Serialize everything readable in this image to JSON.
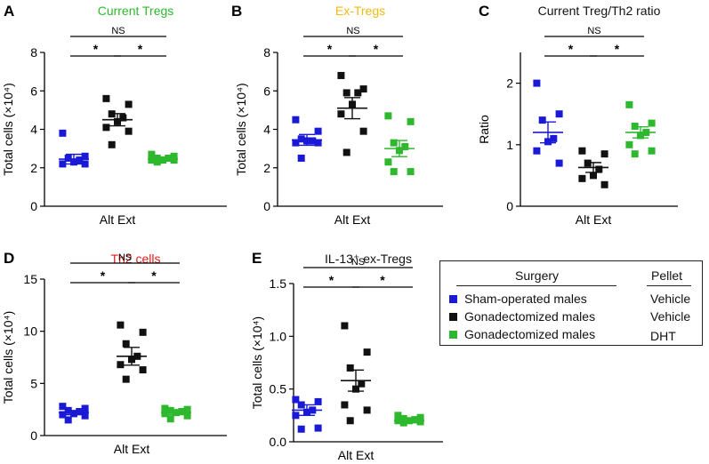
{
  "chart_data": [
    {
      "id": "A",
      "type": "scatter",
      "panel_letter": "A",
      "title": "Current Tregs",
      "title_color": "#2eb82e",
      "xlabel": "Alt Ext",
      "ylabel": "Total cells (×10⁴)",
      "ylim": [
        0,
        8
      ],
      "yticks": [
        "0",
        "2",
        "4",
        "6",
        "8"
      ],
      "groups": [
        {
          "name": "Sham-operated males",
          "color": "#1a1ad6",
          "shape": "square",
          "mean": 2.45,
          "sem": 0.25,
          "values": [
            3.8,
            2.6,
            2.5,
            2.4,
            2.3,
            2.2,
            2.2
          ]
        },
        {
          "name": "Gonadectomized males + Vehicle",
          "color": "#111111",
          "shape": "square",
          "mean": 4.5,
          "sem": 0.32,
          "values": [
            5.6,
            5.3,
            4.8,
            4.6,
            4.4,
            4.1,
            3.9,
            3.2
          ]
        },
        {
          "name": "Gonadectomized males + DHT",
          "color": "#2eb82e",
          "shape": "square",
          "mean": 2.45,
          "sem": 0.1,
          "values": [
            2.7,
            2.6,
            2.5,
            2.5,
            2.4,
            2.4,
            2.4,
            2.3
          ]
        }
      ],
      "significance": [
        {
          "from": 0,
          "to": 1,
          "label": "*"
        },
        {
          "from": 1,
          "to": 2,
          "label": "*"
        },
        {
          "from": 0,
          "to": 2,
          "label": "NS"
        }
      ]
    },
    {
      "id": "B",
      "type": "scatter",
      "panel_letter": "B",
      "title": "Ex-Tregs",
      "title_color": "#f2b90f",
      "xlabel": "Alt Ext",
      "ylabel": "Total cells (×10⁴)",
      "ylim": [
        0,
        8
      ],
      "yticks": [
        "0",
        "2",
        "4",
        "6",
        "8"
      ],
      "groups": [
        {
          "name": "Sham-operated males",
          "color": "#1a1ad6",
          "shape": "square",
          "mean": 3.45,
          "sem": 0.28,
          "values": [
            4.5,
            3.9,
            3.5,
            3.4,
            3.4,
            3.3,
            3.3,
            2.5
          ]
        },
        {
          "name": "Gonadectomized males + Vehicle",
          "color": "#111111",
          "shape": "square",
          "mean": 5.1,
          "sem": 0.55,
          "values": [
            6.8,
            6.1,
            5.9,
            5.9,
            5.3,
            4.8,
            3.9,
            2.8
          ]
        },
        {
          "name": "Gonadectomized males + DHT",
          "color": "#2eb82e",
          "shape": "square",
          "mean": 3.0,
          "sem": 0.42,
          "values": [
            4.7,
            4.4,
            3.3,
            3.1,
            2.9,
            2.3,
            1.8,
            1.8
          ]
        }
      ],
      "significance": [
        {
          "from": 0,
          "to": 1,
          "label": "*"
        },
        {
          "from": 1,
          "to": 2,
          "label": "*"
        },
        {
          "from": 0,
          "to": 2,
          "label": "NS"
        }
      ]
    },
    {
      "id": "C",
      "type": "scatter",
      "panel_letter": "C",
      "title": "Current Treg/Th2 ratio",
      "title_color": "#111111",
      "xlabel": "Alt Ext",
      "ylabel": "Ratio",
      "ylim": [
        0,
        2.5
      ],
      "yticks": [
        "0",
        "1",
        "2"
      ],
      "ytick_values": [
        0,
        1,
        2
      ],
      "groups": [
        {
          "name": "Sham-operated males",
          "color": "#1a1ad6",
          "shape": "square",
          "mean": 1.2,
          "sem": 0.17,
          "values": [
            2.0,
            1.5,
            1.4,
            1.1,
            1.05,
            0.9,
            0.7
          ]
        },
        {
          "name": "Gonadectomized males + Vehicle",
          "color": "#111111",
          "shape": "square",
          "mean": 0.63,
          "sem": 0.08,
          "values": [
            0.9,
            0.85,
            0.7,
            0.6,
            0.5,
            0.45,
            0.35
          ]
        },
        {
          "name": "Gonadectomized males + DHT",
          "color": "#2eb82e",
          "shape": "square",
          "mean": 1.2,
          "sem": 0.09,
          "values": [
            1.65,
            1.35,
            1.3,
            1.2,
            1.15,
            1.0,
            0.9,
            0.85
          ]
        }
      ],
      "significance": [
        {
          "from": 0,
          "to": 1,
          "label": "*"
        },
        {
          "from": 1,
          "to": 2,
          "label": "*"
        },
        {
          "from": 0,
          "to": 2,
          "label": "NS"
        }
      ]
    },
    {
      "id": "D",
      "type": "scatter",
      "panel_letter": "D",
      "title": "Th2 cells",
      "title_color": "#e01b1b",
      "xlabel": "Alt Ext",
      "ylabel": "Total cells (×10⁴)",
      "ylim": [
        0,
        15
      ],
      "yticks": [
        "0",
        "5",
        "10",
        "15"
      ],
      "groups": [
        {
          "name": "Sham-operated males",
          "color": "#1a1ad6",
          "shape": "square",
          "mean": 2.2,
          "sem": 0.2,
          "values": [
            2.8,
            2.6,
            2.4,
            2.3,
            2.1,
            2.0,
            1.9,
            1.5
          ]
        },
        {
          "name": "Gonadectomized males + Vehicle",
          "color": "#111111",
          "shape": "square",
          "mean": 7.6,
          "sem": 0.85,
          "values": [
            10.6,
            9.9,
            8.8,
            7.6,
            7.3,
            6.8,
            6.3,
            5.4
          ]
        },
        {
          "name": "Gonadectomized males + DHT",
          "color": "#2eb82e",
          "shape": "square",
          "mean": 2.2,
          "sem": 0.2,
          "values": [
            2.6,
            2.5,
            2.4,
            2.3,
            2.2,
            2.1,
            1.9,
            1.6
          ]
        }
      ],
      "significance": [
        {
          "from": 0,
          "to": 1,
          "label": "*"
        },
        {
          "from": 1,
          "to": 2,
          "label": "*"
        },
        {
          "from": 0,
          "to": 2,
          "label": "NS"
        }
      ]
    },
    {
      "id": "E",
      "type": "scatter",
      "panel_letter": "E",
      "title": "IL-13⁺ ex-Tregs",
      "title_color": "#111111",
      "xlabel": "Alt Ext",
      "ylabel": "Total cells (×10⁴)",
      "ylim": [
        0,
        1.5
      ],
      "yticks": [
        "0.0",
        "0.5",
        "1.0",
        "1.5"
      ],
      "groups": [
        {
          "name": "Sham-operated males",
          "color": "#1a1ad6",
          "shape": "square",
          "mean": 0.3,
          "sem": 0.05,
          "values": [
            0.4,
            0.38,
            0.35,
            0.3,
            0.28,
            0.25,
            0.13,
            0.12
          ]
        },
        {
          "name": "Gonadectomized males + Vehicle",
          "color": "#111111",
          "shape": "square",
          "mean": 0.58,
          "sem": 0.1,
          "values": [
            1.1,
            0.85,
            0.7,
            0.55,
            0.5,
            0.35,
            0.3,
            0.2
          ]
        },
        {
          "name": "Gonadectomized males + DHT",
          "color": "#2eb82e",
          "shape": "square",
          "mean": 0.2,
          "sem": 0.02,
          "values": [
            0.25,
            0.23,
            0.22,
            0.21,
            0.2,
            0.2,
            0.19,
            0.18
          ]
        }
      ],
      "significance": [
        {
          "from": 0,
          "to": 1,
          "label": "*"
        },
        {
          "from": 1,
          "to": 2,
          "label": "*"
        },
        {
          "from": 0,
          "to": 2,
          "label": "NS"
        }
      ]
    }
  ],
  "legend": {
    "surgery_header": "Surgery",
    "pellet_header": "Pellet",
    "entries": [
      {
        "color": "#1a1ad6",
        "label": "Sham-operated males",
        "pellet": "Vehicle"
      },
      {
        "color": "#111111",
        "label": "Gonadectomized males",
        "pellet": "Vehicle"
      },
      {
        "color": "#2eb82e",
        "label": "Gonadectomized males",
        "pellet": "DHT"
      }
    ]
  }
}
